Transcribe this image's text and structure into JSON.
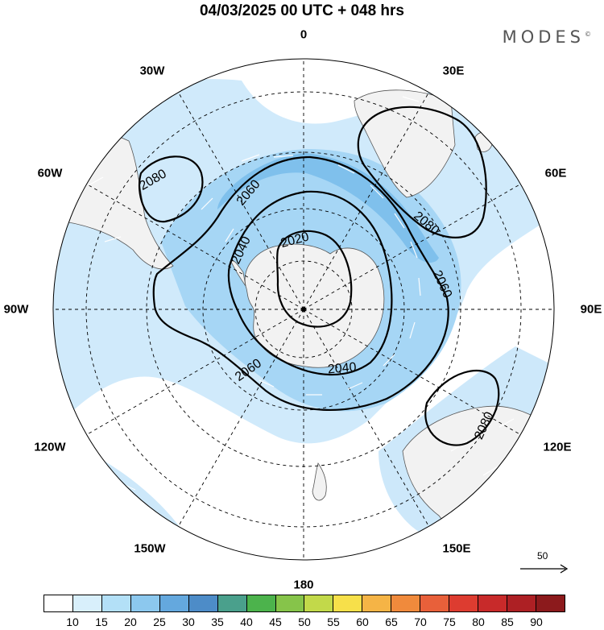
{
  "header": {
    "title": "04/03/2025  00 UTC  + 048 hrs",
    "brand": "MODES",
    "brand_mark": "©"
  },
  "map": {
    "projection": "south-polar-stereographic",
    "longitude_labels": [
      "0",
      "30E",
      "60E",
      "90E",
      "120E",
      "150E",
      "180",
      "150W",
      "120W",
      "90W",
      "60W",
      "30W"
    ],
    "contour_labels": [
      "2080",
      "2060",
      "2040",
      "2020",
      "2080",
      "2060",
      "2060",
      "2040",
      "2080"
    ],
    "reference_vector": {
      "value": "50"
    },
    "colors": {
      "ocean": "#ffffff",
      "land": "#f2f2f2",
      "wind_light": "#c8e6fa",
      "wind_mid": "#a6d6f5",
      "wind_strong": "#7fc0ec"
    }
  },
  "colorbar": {
    "ticks": [
      "10",
      "15",
      "20",
      "25",
      "30",
      "35",
      "40",
      "45",
      "50",
      "55",
      "60",
      "65",
      "70",
      "75",
      "80",
      "85",
      "90"
    ],
    "colors": [
      "#ffffff",
      "#d8effb",
      "#b3e0f7",
      "#8cc8ee",
      "#64a8de",
      "#4d8cc8",
      "#4aa08c",
      "#4cb34c",
      "#86c44a",
      "#c2d94a",
      "#f7e04a",
      "#f5b446",
      "#f08a3c",
      "#e8603a",
      "#dd3c30",
      "#c82a2a",
      "#ad2024",
      "#8c1a1c"
    ]
  }
}
